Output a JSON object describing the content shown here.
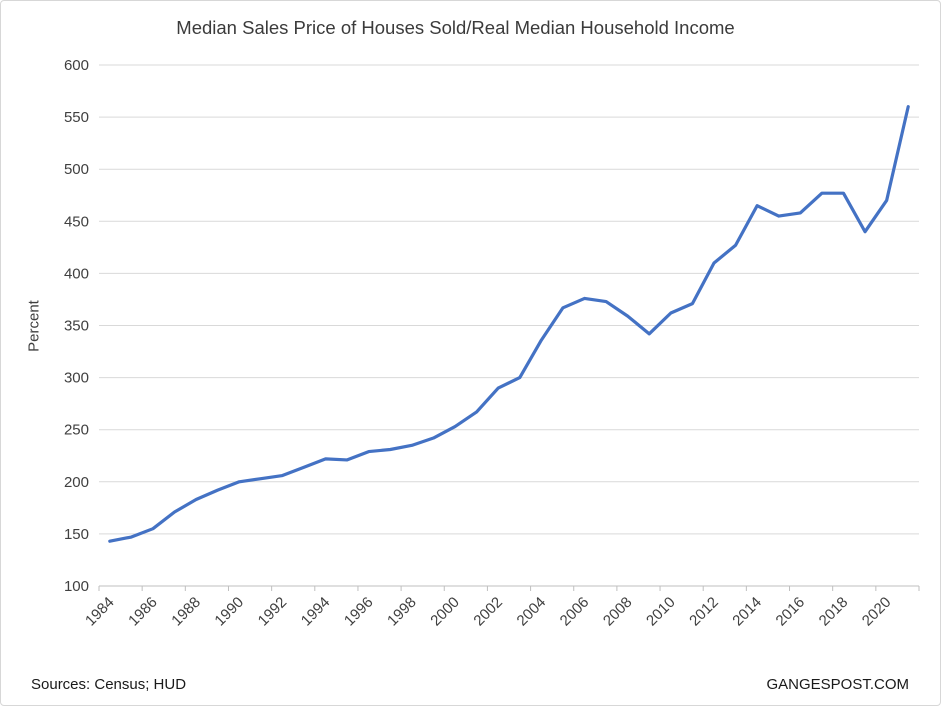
{
  "footer": {
    "sources": "Sources: Census; HUD",
    "watermark": "GANGESPOST.COM"
  },
  "colors": {
    "accent_line": "#4472C4",
    "gridline": "#d9d9d9",
    "axis_line": "#bfbfbf",
    "tick_text": "#404040",
    "title_text": "#3b3b3b"
  },
  "chart_data": {
    "type": "line",
    "title": "Median Sales Price of Houses Sold/Real Median Household Income",
    "xlabel": "",
    "ylabel": "Percent",
    "ylim": [
      100,
      600
    ],
    "ytick_step": 50,
    "x_label_every": 2,
    "grid": true,
    "legend": "none",
    "line_color": "#4472C4",
    "line_width": 3.2,
    "categories": [
      "1984",
      "1985",
      "1986",
      "1987",
      "1988",
      "1989",
      "1990",
      "1991",
      "1992",
      "1993",
      "1994",
      "1995",
      "1996",
      "1997",
      "1998",
      "1999",
      "2000",
      "2001",
      "2002",
      "2003",
      "2004",
      "2005",
      "2006",
      "2007",
      "2008",
      "2009",
      "2010",
      "2011",
      "2012",
      "2013",
      "2014",
      "2015",
      "2016",
      "2017",
      "2018",
      "2019",
      "2020",
      "2021"
    ],
    "values": [
      143,
      147,
      155,
      171,
      183,
      192,
      200,
      203,
      206,
      214,
      222,
      221,
      229,
      231,
      235,
      242,
      253,
      267,
      290,
      300,
      336,
      367,
      376,
      373,
      359,
      342,
      362,
      371,
      410,
      427,
      465,
      455,
      458,
      477,
      477,
      440,
      470,
      560
    ]
  }
}
